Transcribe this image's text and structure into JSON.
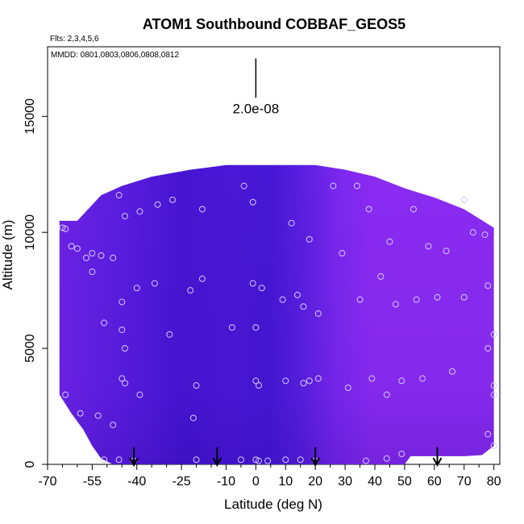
{
  "chart_data": {
    "type": "heatmap",
    "title": "ATOM1 Southbound COBBAF_GEOS5",
    "flights_note": "Flts: 2,3,4,5,6",
    "dates_note": "MMDD: 0801,0803,0806,0808,0812",
    "xlabel": "Latitude (deg N)",
    "ylabel": "Altitude (m)",
    "xlim": [
      -70,
      82
    ],
    "ylim": [
      0,
      18000
    ],
    "x_ticks": [
      -70,
      -55,
      -40,
      -25,
      -10,
      0,
      10,
      20,
      30,
      40,
      50,
      60,
      70,
      80
    ],
    "x_minor_ticks": [
      -65,
      -60,
      -50,
      -45,
      -35,
      -30,
      -20,
      -15,
      -5,
      5,
      15,
      25,
      35,
      45,
      55,
      65,
      75
    ],
    "y_ticks": [
      0,
      5000,
      10000,
      15000
    ],
    "scale_bar": {
      "label": "2.0e-08",
      "x": 0,
      "y_bottom": 15800,
      "y_top": 17500
    },
    "colors": {
      "dark": "#3a12c9",
      "mid": "#5a1fe0",
      "light": "#8a2bf2",
      "point": "#d8c8ff"
    },
    "envelope": [
      [
        -66,
        10500
      ],
      [
        -60,
        10500
      ],
      [
        -52,
        11600
      ],
      [
        -45,
        12000
      ],
      [
        -35,
        12400
      ],
      [
        -22,
        12700
      ],
      [
        -10,
        12900
      ],
      [
        0,
        12900
      ],
      [
        10,
        12900
      ],
      [
        20,
        12900
      ],
      [
        30,
        12700
      ],
      [
        40,
        12400
      ],
      [
        50,
        11900
      ],
      [
        60,
        11500
      ],
      [
        70,
        11000
      ],
      [
        80,
        10200
      ]
    ],
    "floor": [
      [
        -66,
        3000
      ],
      [
        -62,
        2200
      ],
      [
        -58,
        1500
      ],
      [
        -55,
        800
      ],
      [
        -52,
        250
      ],
      [
        -48,
        0
      ],
      [
        50,
        0
      ],
      [
        52,
        350
      ],
      [
        70,
        350
      ],
      [
        76,
        400
      ],
      [
        80,
        800
      ]
    ],
    "arrows_lat": [
      -41,
      -13,
      20,
      61
    ],
    "points": [
      [
        -65,
        10200
      ],
      [
        -64,
        10150
      ],
      [
        -62,
        9400
      ],
      [
        -60,
        9300
      ],
      [
        -57,
        8900
      ],
      [
        -55,
        9100
      ],
      [
        -52,
        9000
      ],
      [
        -46,
        11600
      ],
      [
        -44,
        10700
      ],
      [
        -39,
        10900
      ],
      [
        -33,
        11200
      ],
      [
        -28,
        11400
      ],
      [
        -18,
        11000
      ],
      [
        -4,
        12000
      ],
      [
        -1,
        11300
      ],
      [
        12,
        10400
      ],
      [
        18,
        9700
      ],
      [
        26,
        12000
      ],
      [
        29,
        9100
      ],
      [
        34,
        12000
      ],
      [
        38,
        11000
      ],
      [
        45,
        9600
      ],
      [
        53,
        11000
      ],
      [
        58,
        9400
      ],
      [
        64,
        9200
      ],
      [
        70,
        11400
      ],
      [
        73,
        10000
      ],
      [
        77,
        9900
      ],
      [
        -55,
        8300
      ],
      [
        -48,
        8900
      ],
      [
        -45,
        7000
      ],
      [
        -40,
        7600
      ],
      [
        -34,
        7800
      ],
      [
        -22,
        7500
      ],
      [
        -18,
        8000
      ],
      [
        -1,
        7800
      ],
      [
        2,
        7600
      ],
      [
        9,
        7100
      ],
      [
        14,
        7300
      ],
      [
        16,
        6800
      ],
      [
        21,
        6500
      ],
      [
        35,
        7100
      ],
      [
        42,
        8100
      ],
      [
        47,
        6900
      ],
      [
        54,
        7100
      ],
      [
        61,
        7200
      ],
      [
        70,
        7200
      ],
      [
        78,
        7700
      ],
      [
        -51,
        6100
      ],
      [
        -45,
        5800
      ],
      [
        -44,
        5000
      ],
      [
        -29,
        5600
      ],
      [
        -8,
        5900
      ],
      [
        0,
        5900
      ],
      [
        78,
        5000
      ],
      [
        80,
        5600
      ],
      [
        -45,
        3700
      ],
      [
        -44,
        3500
      ],
      [
        -39,
        3000
      ],
      [
        -20,
        3400
      ],
      [
        0,
        3600
      ],
      [
        1,
        3400
      ],
      [
        10,
        3600
      ],
      [
        16,
        3500
      ],
      [
        18,
        3600
      ],
      [
        21,
        3700
      ],
      [
        31,
        3300
      ],
      [
        39,
        3700
      ],
      [
        44,
        3000
      ],
      [
        49,
        3600
      ],
      [
        56,
        3700
      ],
      [
        66,
        4000
      ],
      [
        80,
        3400
      ],
      [
        80,
        3000
      ],
      [
        -64,
        3000
      ],
      [
        -59,
        2200
      ],
      [
        -53,
        2100
      ],
      [
        -48,
        1700
      ],
      [
        -21,
        2000
      ],
      [
        78,
        1300
      ],
      [
        80,
        800
      ],
      [
        -51,
        200
      ],
      [
        -46,
        200
      ],
      [
        -41,
        150
      ],
      [
        -20,
        200
      ],
      [
        -5,
        200
      ],
      [
        0,
        200
      ],
      [
        1,
        150
      ],
      [
        4,
        150
      ],
      [
        10,
        200
      ],
      [
        15,
        200
      ],
      [
        20,
        150
      ],
      [
        37,
        150
      ],
      [
        44,
        250
      ],
      [
        49,
        450
      ]
    ]
  }
}
